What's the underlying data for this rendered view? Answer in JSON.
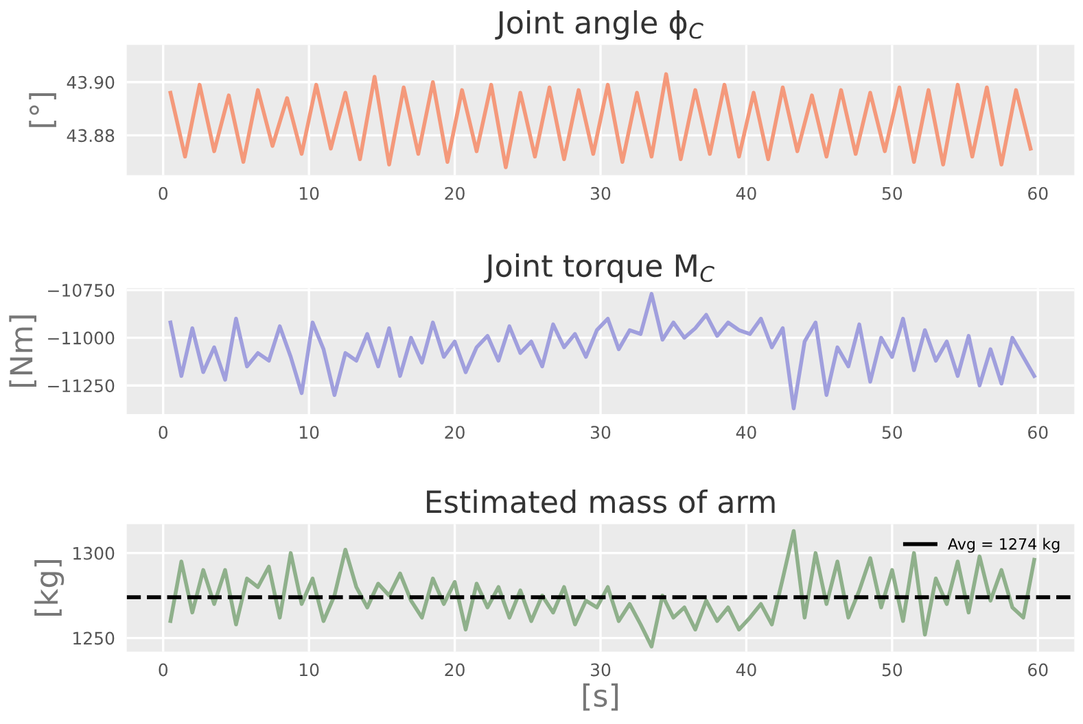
{
  "chart_data": [
    {
      "type": "line",
      "title": "Joint angle ϕ$_{C}$",
      "ylabel": "[°]",
      "x": [
        0.5,
        1.5,
        2.5,
        3.5,
        4.5,
        5.5,
        6.5,
        7.5,
        8.5,
        9.5,
        10.5,
        11.5,
        12.5,
        13.5,
        14.5,
        15.5,
        16.5,
        17.5,
        18.5,
        19.5,
        20.5,
        21.5,
        22.5,
        23.5,
        24.5,
        25.5,
        26.5,
        27.5,
        28.5,
        29.5,
        30.5,
        31.5,
        32.5,
        33.5,
        34.5,
        35.5,
        36.5,
        37.5,
        38.5,
        39.5,
        40.5,
        41.5,
        42.5,
        43.5,
        44.5,
        45.5,
        46.5,
        47.5,
        48.5,
        49.5,
        50.5,
        51.5,
        52.5,
        53.5,
        54.5,
        55.5,
        56.5,
        57.5,
        58.5,
        59.5
      ],
      "series": [
        {
          "color": "#f4997b",
          "values": [
            43.896,
            43.872,
            43.899,
            43.874,
            43.895,
            43.87,
            43.897,
            43.876,
            43.894,
            43.873,
            43.899,
            43.875,
            43.896,
            43.871,
            43.902,
            43.869,
            43.898,
            43.873,
            43.9,
            43.87,
            43.897,
            43.874,
            43.899,
            43.868,
            43.896,
            43.872,
            43.898,
            43.871,
            43.897,
            43.873,
            43.899,
            43.87,
            43.896,
            43.872,
            43.903,
            43.871,
            43.897,
            43.873,
            43.899,
            43.872,
            43.896,
            43.871,
            43.898,
            43.874,
            43.895,
            43.872,
            43.897,
            43.873,
            43.896,
            43.874,
            43.898,
            43.87,
            43.897,
            43.869,
            43.899,
            43.872,
            43.898,
            43.869,
            43.897,
            43.875
          ]
        }
      ],
      "xlim": [
        -2.5,
        62.5
      ],
      "ylim": [
        43.865,
        43.914
      ],
      "xticks": [
        0,
        10,
        20,
        30,
        40,
        50,
        60
      ],
      "yticks": [
        {
          "value": 43.88,
          "label": "43.88"
        },
        {
          "value": 43.9,
          "label": "43.90"
        }
      ],
      "grid": true
    },
    {
      "type": "line",
      "title": "Joint torque M$_{C}$",
      "ylabel": "[Nm]",
      "x": [
        0.5,
        1.25,
        2,
        2.75,
        3.5,
        4.25,
        5,
        5.75,
        6.5,
        7.25,
        8,
        8.75,
        9.5,
        10.25,
        11,
        11.75,
        12.5,
        13.25,
        14,
        14.75,
        15.5,
        16.25,
        17,
        17.75,
        18.5,
        19.25,
        20,
        20.75,
        21.5,
        22.25,
        23,
        23.75,
        24.5,
        25.25,
        26,
        26.75,
        27.5,
        28.25,
        29,
        29.75,
        30.5,
        31.25,
        32,
        32.75,
        33.5,
        34.25,
        35,
        35.75,
        36.5,
        37.25,
        38,
        38.75,
        39.5,
        40.25,
        41,
        41.75,
        42.5,
        43.25,
        44,
        44.75,
        45.5,
        46.25,
        47,
        47.75,
        48.5,
        49.25,
        50,
        50.75,
        51.5,
        52.25,
        53,
        53.75,
        54.5,
        55.25,
        56,
        56.75,
        57.5,
        58.25,
        59,
        59.75
      ],
      "series": [
        {
          "color": "#a09fdd",
          "values": [
            -10920,
            -11200,
            -10950,
            -11180,
            -11050,
            -11220,
            -10900,
            -11150,
            -11080,
            -11120,
            -10940,
            -11100,
            -11290,
            -10920,
            -11060,
            -11300,
            -11080,
            -11120,
            -10980,
            -11150,
            -10950,
            -11200,
            -11000,
            -11130,
            -10920,
            -11100,
            -11020,
            -11180,
            -11050,
            -10990,
            -11120,
            -10940,
            -11080,
            -11020,
            -11150,
            -10930,
            -11050,
            -10980,
            -11100,
            -10960,
            -10900,
            -11060,
            -10960,
            -10980,
            -10770,
            -11010,
            -10920,
            -11000,
            -10950,
            -10880,
            -10990,
            -10920,
            -10960,
            -10980,
            -10900,
            -11050,
            -10950,
            -11370,
            -11020,
            -10920,
            -11300,
            -11050,
            -11150,
            -10930,
            -11230,
            -11000,
            -11100,
            -10900,
            -11170,
            -10960,
            -11120,
            -11020,
            -11200,
            -10990,
            -11250,
            -11060,
            -11240,
            -11000,
            -11100,
            -11200
          ]
        }
      ],
      "xlim": [
        -2.5,
        62.5
      ],
      "ylim": [
        -11400,
        -10740
      ],
      "xticks": [
        0,
        10,
        20,
        30,
        40,
        50,
        60
      ],
      "yticks": [
        {
          "value": -11250,
          "label": "−11250"
        },
        {
          "value": -11000,
          "label": "−11000"
        },
        {
          "value": -10750,
          "label": "−10750"
        }
      ],
      "grid": true
    },
    {
      "type": "line",
      "title": "Estimated mass of arm",
      "ylabel": "[kg]",
      "xlabel": "[s]",
      "x": [
        0.5,
        1.25,
        2,
        2.75,
        3.5,
        4.25,
        5,
        5.75,
        6.5,
        7.25,
        8,
        8.75,
        9.5,
        10.25,
        11,
        11.75,
        12.5,
        13.25,
        14,
        14.75,
        15.5,
        16.25,
        17,
        17.75,
        18.5,
        19.25,
        20,
        20.75,
        21.5,
        22.25,
        23,
        23.75,
        24.5,
        25.25,
        26,
        26.75,
        27.5,
        28.25,
        29,
        29.75,
        30.5,
        31.25,
        32,
        32.75,
        33.5,
        34.25,
        35,
        35.75,
        36.5,
        37.25,
        38,
        38.75,
        39.5,
        40.25,
        41,
        41.75,
        42.5,
        43.25,
        44,
        44.75,
        45.5,
        46.25,
        47,
        47.75,
        48.5,
        49.25,
        50,
        50.75,
        51.5,
        52.25,
        53,
        53.75,
        54.5,
        55.25,
        56,
        56.75,
        57.5,
        58.25,
        59,
        59.75
      ],
      "series": [
        {
          "color": "#8fb08b",
          "values": [
            1260,
            1295,
            1265,
            1290,
            1270,
            1290,
            1258,
            1285,
            1280,
            1292,
            1262,
            1300,
            1270,
            1285,
            1260,
            1275,
            1302,
            1280,
            1268,
            1282,
            1275,
            1288,
            1272,
            1262,
            1285,
            1270,
            1283,
            1255,
            1282,
            1268,
            1280,
            1262,
            1278,
            1260,
            1275,
            1265,
            1280,
            1258,
            1272,
            1268,
            1280,
            1260,
            1270,
            1258,
            1245,
            1275,
            1262,
            1268,
            1255,
            1272,
            1260,
            1268,
            1255,
            1262,
            1270,
            1258,
            1285,
            1313,
            1262,
            1300,
            1270,
            1295,
            1262,
            1278,
            1297,
            1268,
            1290,
            1260,
            1300,
            1252,
            1285,
            1270,
            1295,
            1265,
            1298,
            1272,
            1290,
            1268,
            1262,
            1296
          ]
        }
      ],
      "ref_lines": [
        {
          "axis": "y",
          "value": 1274,
          "label": "Avg = 1274 kg",
          "color": "#000000",
          "line_style": "dashed"
        }
      ],
      "legend": "top right",
      "xlim": [
        -2.5,
        62.5
      ],
      "ylim": [
        1242,
        1317
      ],
      "xticks": [
        0,
        10,
        20,
        30,
        40,
        50,
        60
      ],
      "yticks": [
        1250,
        1300
      ],
      "grid": true
    }
  ]
}
